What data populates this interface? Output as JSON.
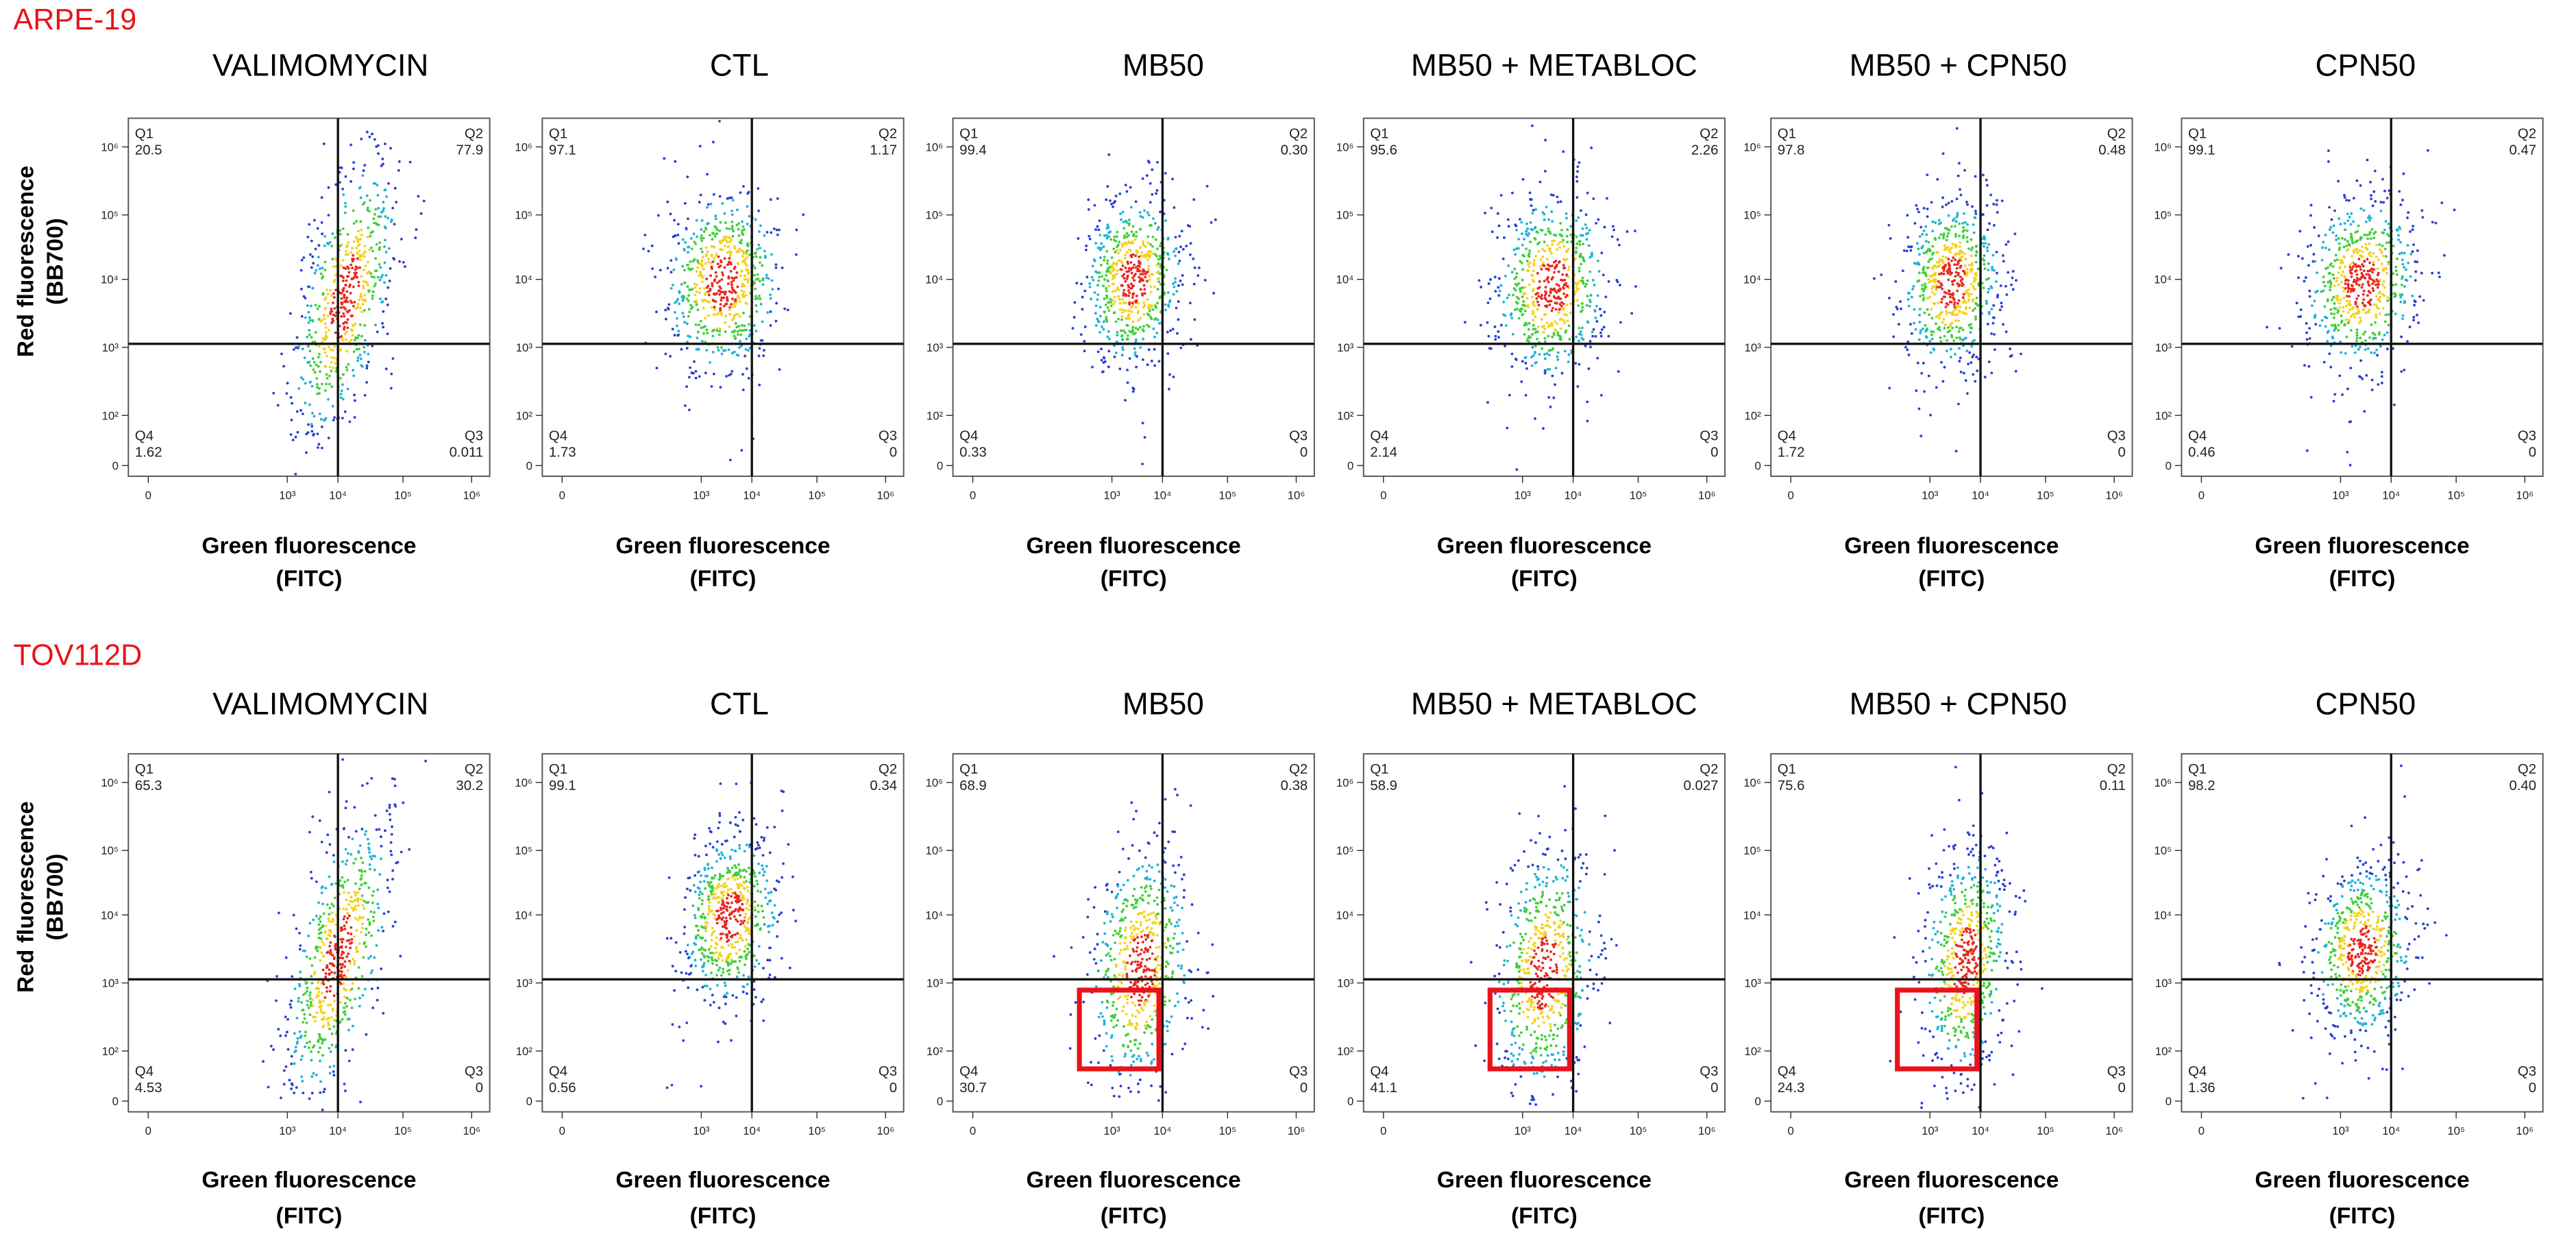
{
  "rows": [
    {
      "label": "ARPE-19",
      "panels": [
        {
          "title": "VALIMOMYCIN",
          "q1": "20.5",
          "q2": "77.9",
          "q3": "0.011",
          "q4": "1.62"
        },
        {
          "title": "CTL",
          "q1": "97.1",
          "q2": "1.17",
          "q3": "0",
          "q4": "1.73"
        },
        {
          "title": "MB50",
          "q1": "99.4",
          "q2": "0.30",
          "q3": "0",
          "q4": "0.33"
        },
        {
          "title": "MB50 + METABLOC",
          "q1": "95.6",
          "q2": "2.26",
          "q3": "0",
          "q4": "2.14"
        },
        {
          "title": "MB50 + CPN50",
          "q1": "97.8",
          "q2": "0.48",
          "q3": "0",
          "q4": "1.72"
        },
        {
          "title": "CPN50",
          "q1": "99.1",
          "q2": "0.47",
          "q3": "0",
          "q4": "0.46"
        }
      ]
    },
    {
      "label": "TOV112D",
      "panels": [
        {
          "title": "VALIMOMYCIN",
          "q1": "65.3",
          "q2": "30.2",
          "q3": "0",
          "q4": "4.53"
        },
        {
          "title": "CTL",
          "q1": "99.1",
          "q2": "0.34",
          "q3": "0",
          "q4": "0.56"
        },
        {
          "title": "MB50",
          "q1": "68.9",
          "q2": "0.38",
          "q3": "0",
          "q4": "30.7"
        },
        {
          "title": "MB50 + METABLOC",
          "q1": "58.9",
          "q2": "0.027",
          "q3": "0",
          "q4": "41.1"
        },
        {
          "title": "MB50 + CPN50",
          "q1": "75.6",
          "q2": "0.11",
          "q3": "0",
          "q4": "24.3"
        },
        {
          "title": "CPN50",
          "q1": "98.2",
          "q2": "0.40",
          "q3": "0",
          "q4": "1.36"
        }
      ]
    }
  ],
  "quadrants": {
    "q1": "Q1",
    "q2": "Q2",
    "q3": "Q3",
    "q4": "Q4"
  },
  "x_ticks": [
    "0",
    "10³",
    "10⁴",
    "10⁵",
    "10⁶"
  ],
  "y_ticks": [
    "0",
    "10²",
    "10³",
    "10⁴",
    "10⁵",
    "10⁶"
  ],
  "y_label": [
    "Red fluorescence",
    "(BB700)"
  ],
  "x_label": [
    "Green fluorescence",
    "(FITC)"
  ]
}
